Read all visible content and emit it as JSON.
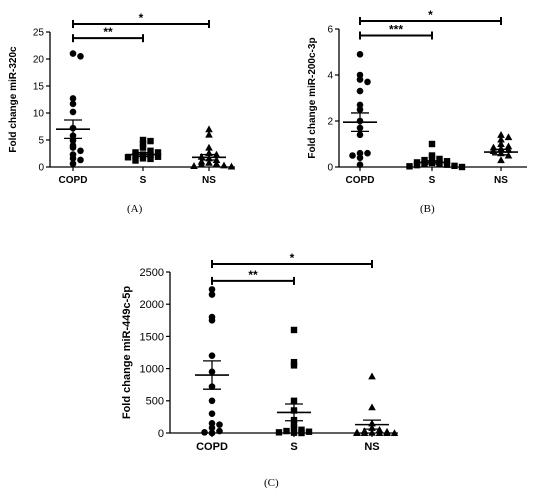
{
  "chart_data": [
    {
      "type": "scatter",
      "panel_label": "(A)",
      "ylabel": "Fold change miR-320c",
      "categories": [
        "COPD",
        "S",
        "NS"
      ],
      "ylim": [
        0,
        25
      ],
      "yticks": [
        0,
        5,
        10,
        15,
        20,
        25
      ],
      "markers": [
        "circle",
        "square",
        "triangle"
      ],
      "series": [
        {
          "values": [
            21.0,
            20.5,
            12.7,
            11.7,
            10.2,
            7.2,
            5.8,
            4.9,
            4.0,
            3.6,
            3.0,
            2.3,
            1.6,
            1.3,
            0.6
          ],
          "mean": 7.0,
          "sem": 1.7
        },
        {
          "values": [
            5.0,
            4.8,
            4.3,
            3.6,
            3.0,
            2.7,
            2.7,
            2.3,
            2.2,
            2.1,
            1.9,
            1.8,
            1.6,
            1.5,
            1.2
          ],
          "mean": 2.3,
          "sem": 0.35
        },
        {
          "values": [
            7.0,
            6.0,
            3.6,
            2.6,
            2.3,
            1.9,
            1.6,
            1.3,
            1.0,
            0.8,
            0.6,
            0.5,
            0.3,
            0.2,
            0.1
          ],
          "mean": 1.8,
          "sem": 0.5
        }
      ],
      "significance": [
        {
          "from": "COPD",
          "to": "S",
          "label": "**"
        },
        {
          "from": "COPD",
          "to": "NS",
          "label": "*"
        }
      ]
    },
    {
      "type": "scatter",
      "panel_label": "(B)",
      "ylabel": "Fold change miR-200c-3p",
      "categories": [
        "COPD",
        "S",
        "NS"
      ],
      "ylim": [
        0,
        6
      ],
      "yticks": [
        0,
        2,
        4,
        6
      ],
      "markers": [
        "circle",
        "square",
        "triangle"
      ],
      "series": [
        {
          "values": [
            4.9,
            4.0,
            3.8,
            3.7,
            3.3,
            2.7,
            2.5,
            2.0,
            1.7,
            1.4,
            0.6,
            0.6,
            0.5,
            0.4,
            0.1
          ],
          "mean": 1.95,
          "sem": 0.4
        },
        {
          "values": [
            1.0,
            0.5,
            0.4,
            0.35,
            0.3,
            0.25,
            0.2,
            0.18,
            0.15,
            0.12,
            0.1,
            0.08,
            0.05,
            0.03,
            0.0
          ],
          "mean": 0.2,
          "sem": 0.07
        },
        {
          "values": [
            1.4,
            1.3,
            1.2,
            1.0,
            0.9,
            0.85,
            0.8,
            0.75,
            0.7,
            0.6,
            0.5,
            0.3
          ],
          "mean": 0.65,
          "sem": 0.12
        }
      ],
      "significance": [
        {
          "from": "COPD",
          "to": "S",
          "label": "***"
        },
        {
          "from": "COPD",
          "to": "NS",
          "label": "*"
        }
      ]
    },
    {
      "type": "scatter",
      "panel_label": "(C)",
      "ylabel": "Fold change miR-449c-5p",
      "categories": [
        "COPD",
        "S",
        "NS"
      ],
      "ylim": [
        0,
        2500
      ],
      "yticks": [
        0,
        500,
        1000,
        1500,
        2000,
        2500
      ],
      "markers": [
        "circle",
        "square",
        "triangle"
      ],
      "series": [
        {
          "values": [
            2230,
            2150,
            1800,
            1750,
            1200,
            950,
            720,
            500,
            300,
            150,
            130,
            80,
            30,
            10,
            0
          ],
          "mean": 900,
          "sem": 220
        },
        {
          "values": [
            1600,
            1100,
            1050,
            500,
            350,
            200,
            120,
            80,
            50,
            30,
            20,
            10,
            5,
            0
          ],
          "mean": 320,
          "sem": 130
        },
        {
          "values": [
            880,
            400,
            150,
            80,
            50,
            30,
            20,
            10,
            5,
            0,
            0,
            0,
            0,
            0
          ],
          "mean": 130,
          "sem": 70
        }
      ],
      "significance": [
        {
          "from": "COPD",
          "to": "S",
          "label": "**"
        },
        {
          "from": "COPD",
          "to": "NS",
          "label": "*"
        }
      ]
    }
  ]
}
